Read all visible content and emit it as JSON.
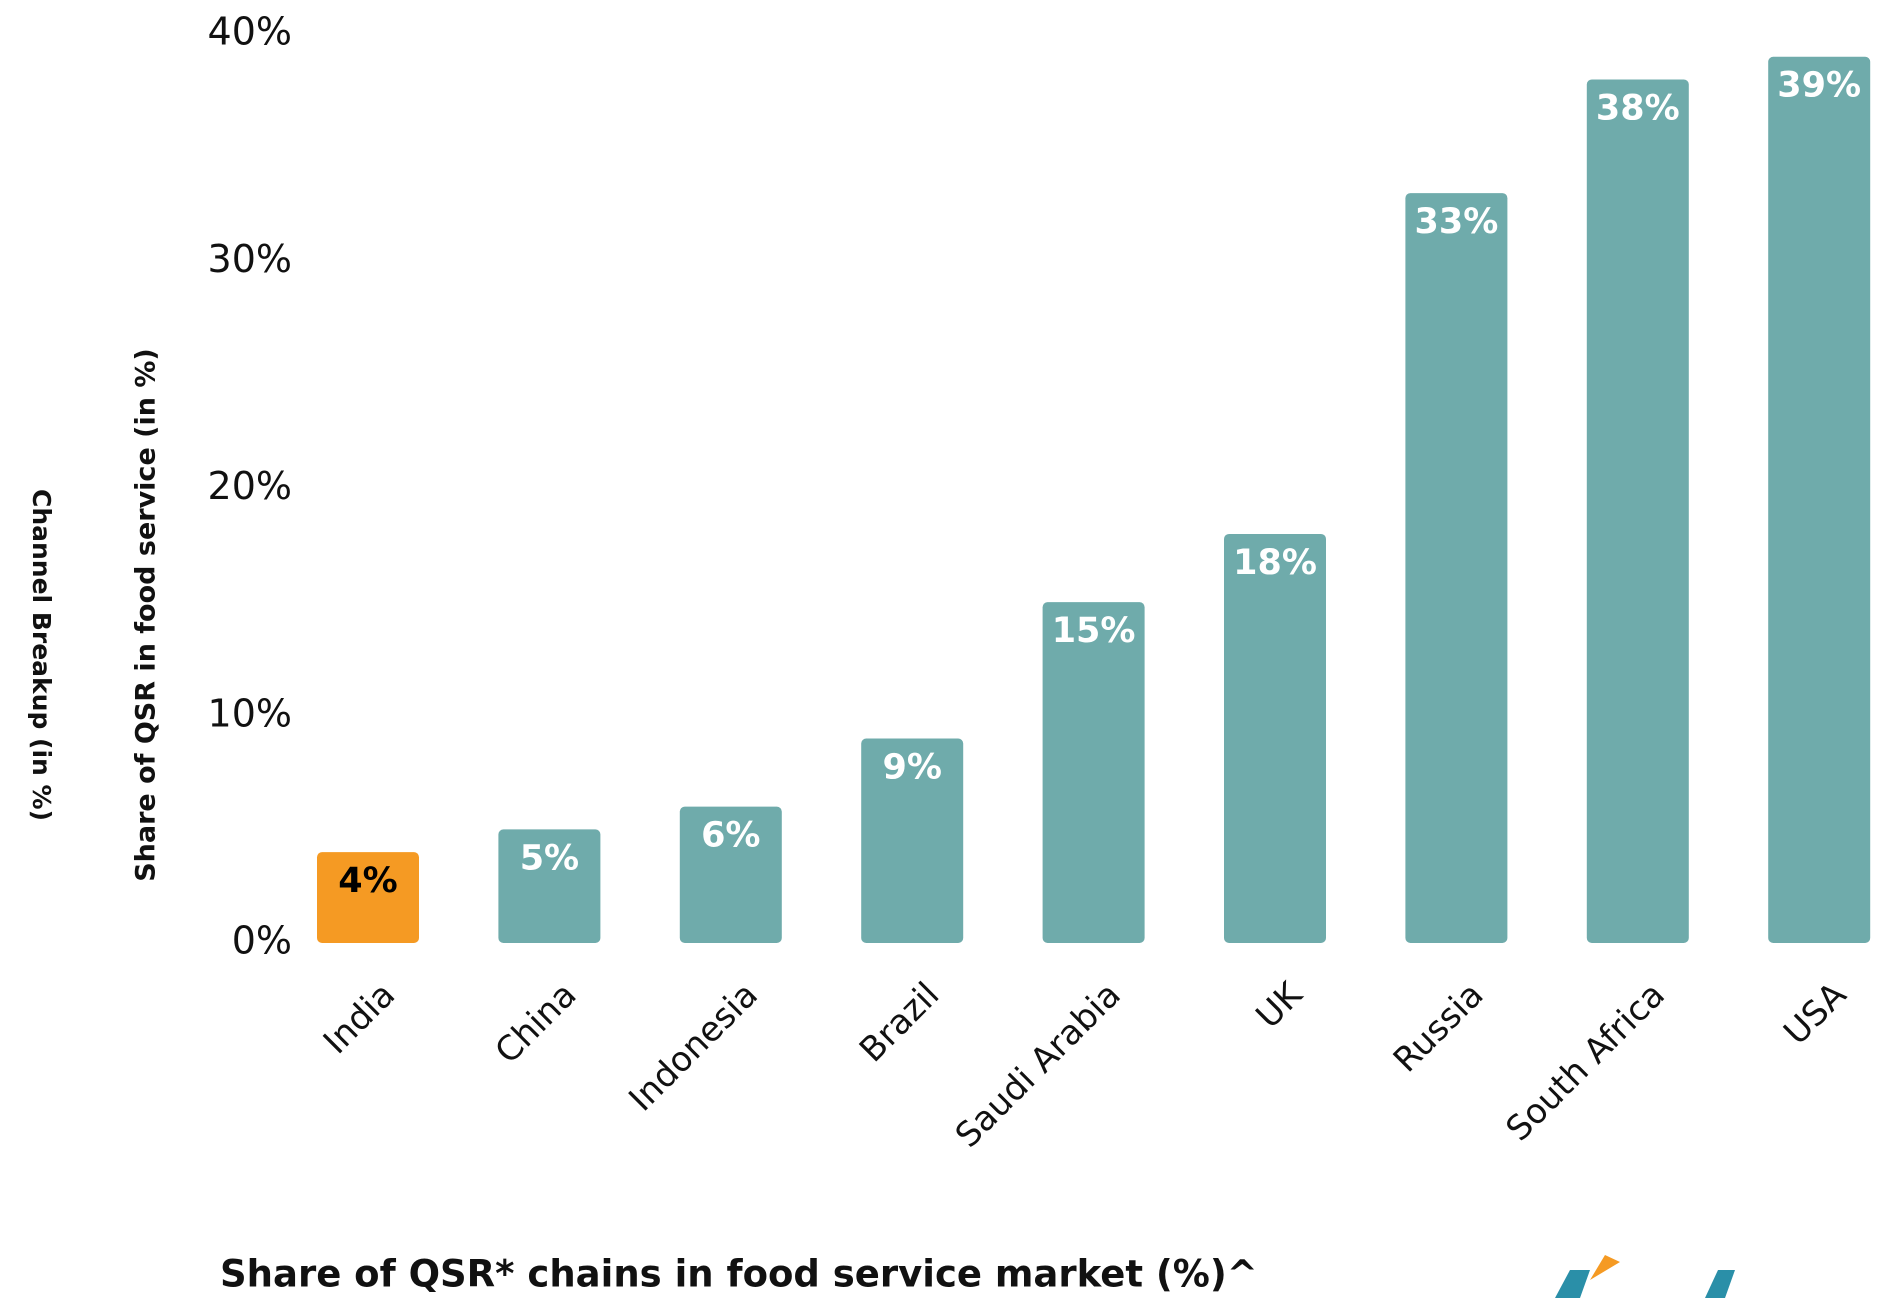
{
  "chart_data": {
    "type": "bar",
    "title": "Share of QSR* chains in food service market (%)^",
    "y_label": "Share of QSR in food service (in %)",
    "y_label_outer": "Channel Breakup (in %)",
    "categories": [
      "India",
      "China",
      "Indonesia",
      "Brazil",
      "Saudi Arabia",
      "UK",
      "Russia",
      "South Africa",
      "USA"
    ],
    "values": [
      4,
      5,
      6,
      9,
      15,
      18,
      33,
      38,
      39
    ],
    "value_labels": [
      "4%",
      "5%",
      "6%",
      "9%",
      "15%",
      "18%",
      "33%",
      "38%",
      "39%"
    ],
    "colors": [
      "#f59a23",
      "#6fabab",
      "#6fabab",
      "#6fabab",
      "#6fabab",
      "#6fabab",
      "#6fabab",
      "#6fabab",
      "#6fabab"
    ],
    "value_label_colors": [
      "#000000",
      "#ffffff",
      "#ffffff",
      "#ffffff",
      "#ffffff",
      "#ffffff",
      "#ffffff",
      "#ffffff",
      "#ffffff"
    ],
    "ylim": [
      0,
      40
    ],
    "yticks": [
      {
        "value": 0,
        "label": "0%"
      },
      {
        "value": 10,
        "label": "10%"
      },
      {
        "value": 20,
        "label": "20%"
      },
      {
        "value": 30,
        "label": "30%"
      },
      {
        "value": 40,
        "label": "40%"
      }
    ],
    "grid": false
  }
}
